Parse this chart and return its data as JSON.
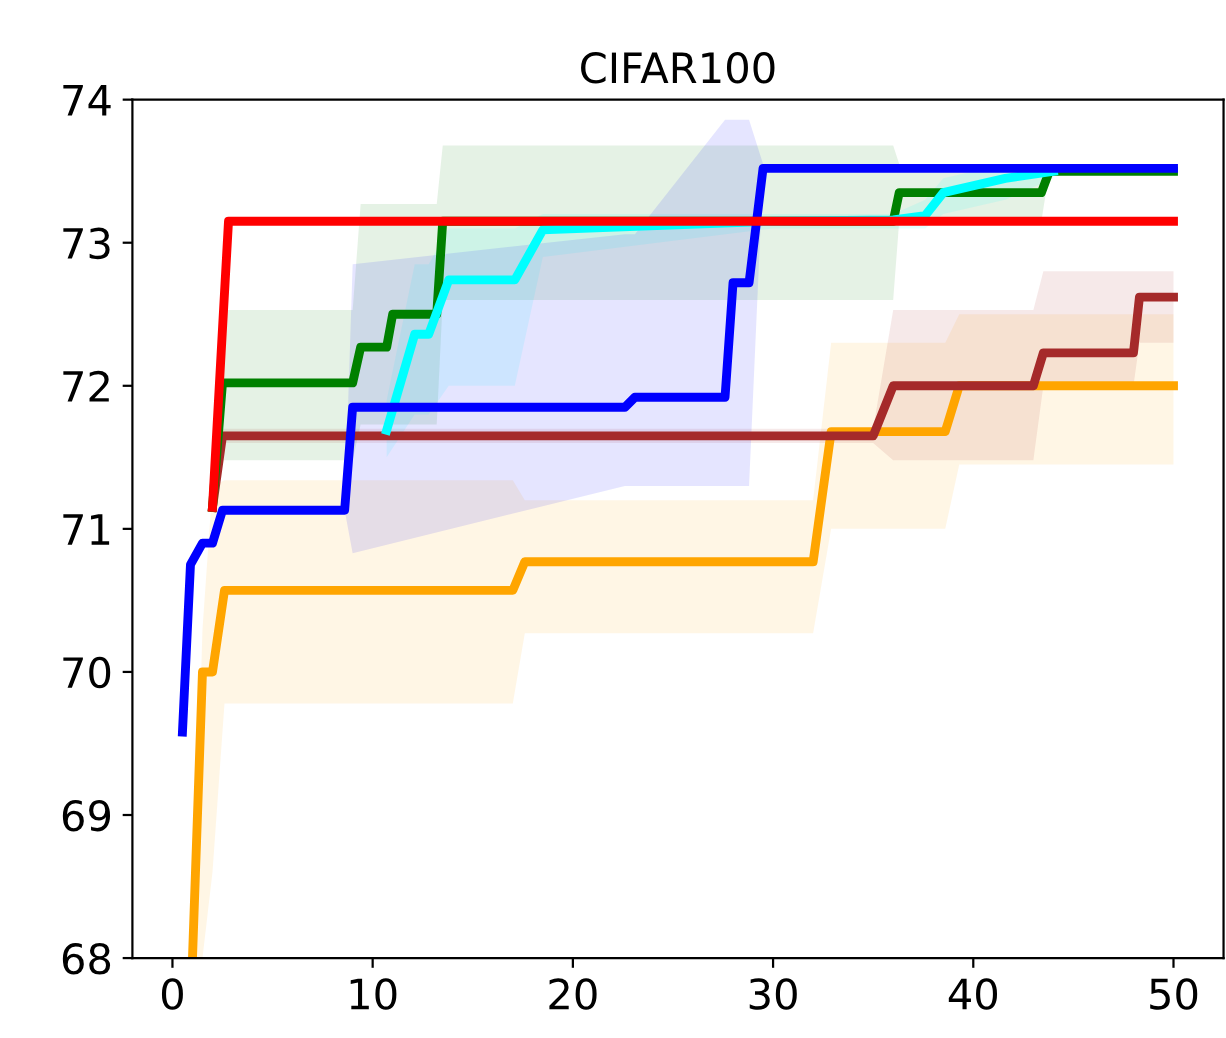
{
  "chart_data": {
    "type": "line",
    "title": "CIFAR100",
    "xlim": [
      -2,
      52.5
    ],
    "ylim": [
      68,
      74
    ],
    "xticks": [
      0,
      10,
      20,
      30,
      40,
      50
    ],
    "yticks": [
      68,
      69,
      70,
      71,
      72,
      73,
      74
    ],
    "grid": false,
    "legend": false,
    "marker": "none",
    "line_style": "solid",
    "series": [
      {
        "color": "#ffa500",
        "x": [
          1.0,
          1.5,
          2.0,
          2.6,
          17.0,
          17.6,
          32.0,
          32.9,
          38.6,
          39.3,
          50
        ],
        "values": [
          68.0,
          70.0,
          70.0,
          70.57,
          70.57,
          70.77,
          70.77,
          71.68,
          71.68,
          72.0,
          72.0
        ],
        "lower": [
          68.0,
          68.0,
          68.6,
          69.78,
          69.78,
          70.27,
          70.27,
          71.0,
          71.0,
          71.45,
          71.45
        ],
        "upper": [
          68.0,
          70.3,
          71.3,
          71.34,
          71.34,
          71.2,
          71.2,
          72.3,
          72.3,
          72.5,
          72.5
        ]
      },
      {
        "color": "#a52a2a",
        "x": [
          2.0,
          2.5,
          35.0,
          36.0,
          43.0,
          43.5,
          48.0,
          48.3,
          50
        ],
        "values": [
          71.15,
          71.65,
          71.65,
          72.0,
          72.0,
          72.23,
          72.23,
          72.62,
          72.62
        ],
        "lower": [
          71.15,
          71.6,
          71.6,
          71.48,
          71.48,
          72.0,
          72.0,
          72.3,
          72.3
        ],
        "upper": [
          71.15,
          71.7,
          71.7,
          72.53,
          72.53,
          72.8,
          72.8,
          72.8,
          72.8
        ]
      },
      {
        "color": "#008000",
        "x": [
          2.0,
          2.5,
          9.0,
          9.4,
          10.7,
          11.0,
          13.2,
          13.5,
          36.0,
          36.3,
          43.4,
          43.8,
          50
        ],
        "values": [
          71.15,
          72.02,
          72.02,
          72.27,
          72.27,
          72.5,
          72.5,
          73.15,
          73.15,
          73.35,
          73.35,
          73.5,
          73.5
        ],
        "lower": [
          71.15,
          71.48,
          71.48,
          71.73,
          71.73,
          71.73,
          71.73,
          72.6,
          72.6,
          73.15,
          73.15,
          73.5,
          73.5
        ],
        "upper": [
          71.15,
          72.53,
          72.53,
          73.27,
          73.27,
          73.27,
          73.27,
          73.68,
          73.68,
          73.55,
          73.55,
          73.5,
          73.5
        ]
      },
      {
        "color": "#00ffff",
        "x": [
          10.7,
          12.1,
          12.8,
          13.8,
          17.1,
          18.5,
          30.0,
          36.0,
          37.6,
          38.5,
          41.6,
          44.0
        ],
        "values": [
          71.69,
          72.36,
          72.36,
          72.74,
          72.74,
          73.09,
          73.15,
          73.16,
          73.19,
          73.35,
          73.45,
          73.5
        ],
        "lower": [
          71.5,
          71.8,
          71.8,
          72.0,
          72.0,
          72.9,
          73.1,
          73.1,
          73.1,
          73.2,
          73.3,
          73.45
        ],
        "upper": [
          71.9,
          72.85,
          72.85,
          73.1,
          73.1,
          73.2,
          73.2,
          73.2,
          73.3,
          73.45,
          73.55,
          73.55
        ]
      },
      {
        "color": "#0000ff",
        "x": [
          0.5,
          0.9,
          1.5,
          2.0,
          2.5,
          8.6,
          9.0,
          22.6,
          23.1,
          27.6,
          28.0,
          28.8,
          29.5,
          50
        ],
        "values": [
          69.58,
          70.75,
          70.9,
          70.9,
          71.13,
          71.13,
          71.85,
          71.85,
          71.92,
          71.92,
          72.72,
          72.72,
          73.52,
          73.52
        ],
        "lower": [
          69.58,
          70.75,
          70.9,
          70.9,
          71.13,
          71.13,
          70.83,
          71.3,
          71.3,
          71.3,
          71.3,
          71.3,
          73.5,
          73.5
        ],
        "upper": [
          69.58,
          70.75,
          70.9,
          70.9,
          71.13,
          71.13,
          72.85,
          73.06,
          73.06,
          73.86,
          73.86,
          73.86,
          73.55,
          73.55
        ]
      },
      {
        "color": "#ff0000",
        "x": [
          2.0,
          2.8,
          50
        ],
        "values": [
          71.15,
          73.15,
          73.15
        ]
      }
    ]
  }
}
